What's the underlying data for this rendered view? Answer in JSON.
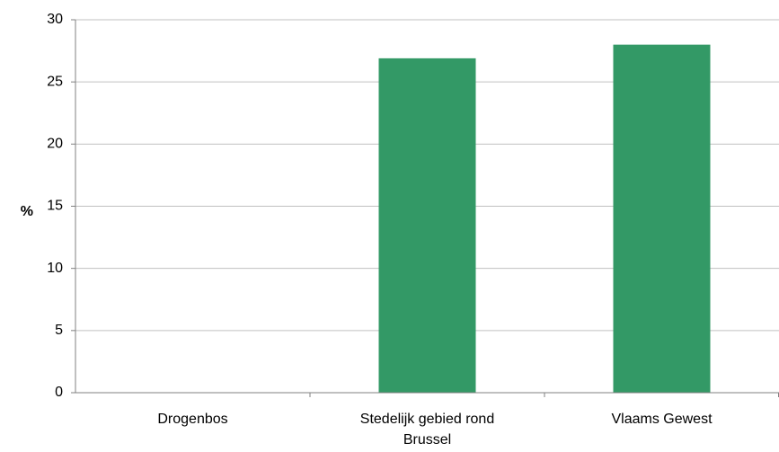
{
  "chart_data": {
    "type": "bar",
    "categories": [
      "Drogenbos",
      "Stedelijk gebied rond Brussel",
      "Vlaams Gewest"
    ],
    "category_lines": [
      [
        "Drogenbos"
      ],
      [
        "Stedelijk gebied rond",
        "Brussel"
      ],
      [
        "Vlaams Gewest"
      ]
    ],
    "values": [
      null,
      26.9,
      28.0
    ],
    "title": "",
    "xlabel": "",
    "ylabel": "%",
    "ylim": [
      0,
      30
    ],
    "yticks": [
      0,
      5,
      10,
      15,
      20,
      25,
      30
    ],
    "grid": true,
    "legend": "none",
    "bar_color": "#339966",
    "grid_color": "#c0c0c0",
    "axis_color": "#808080"
  }
}
